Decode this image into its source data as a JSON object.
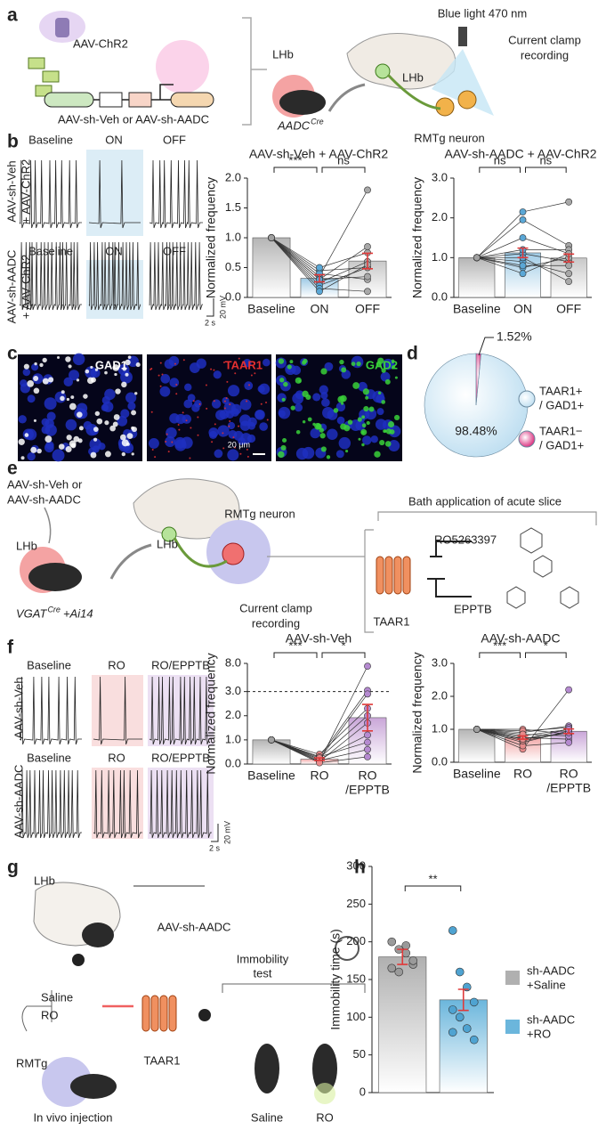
{
  "figure": {
    "panel_letters": [
      "a",
      "b",
      "c",
      "d",
      "e",
      "f",
      "g",
      "h"
    ],
    "a": {
      "chr2": "AAV-ChR2",
      "vectors": "AAV-sh-Veh or AAV-sh-AADC",
      "lhb_site": "LHb",
      "mouse": "AADC",
      "mouse_sup": "Cre",
      "lhb_brain": "LHb",
      "light": "Blue light 470 nm",
      "clamp": [
        "Current clamp",
        "recording"
      ],
      "neuron": "RMTg neuron"
    },
    "b": {
      "conditions": [
        "Baseline",
        "ON",
        "OFF"
      ],
      "rows": [
        [
          "AAV-sh-Veh",
          "+ AAV-ChR2"
        ],
        [
          "AAV-sh-AADC",
          "+ AAV-ChR2"
        ]
      ],
      "scale_v": "20 mV",
      "scale_t": "2 s"
    },
    "c": {
      "stains": [
        "GAD1",
        "TAAR1",
        "GAD2"
      ],
      "scale": "20 μm"
    },
    "e": {
      "vectors": [
        "AAV-sh-Veh or",
        "AAV-sh-AADC"
      ],
      "lhb_site": "LHb",
      "mouse": "VGAT",
      "mouse_sup": "Cre",
      "mouse_cross": "+Ai14",
      "lhb_brain": "LHb",
      "neuron": "RMTg neuron",
      "clamp": [
        "Current clamp",
        "recording"
      ],
      "bath": "Bath application of acute slice",
      "agonist": "RO5263397",
      "antagonist": "EPPTB",
      "receptor": "TAAR1"
    },
    "f": {
      "conditions": [
        "Baseline",
        "RO",
        "RO/EPPTB"
      ],
      "rows": [
        "AAV-sh-Veh",
        "AAV-sh-AADC"
      ],
      "scale_v": "20 mV",
      "scale_t": "2 s"
    },
    "g": {
      "lhb_site": "LHb",
      "vector": "AAV-sh-AADC",
      "drugs": [
        "Saline",
        "RO"
      ],
      "site": "RMTg",
      "receptor": "TAAR1",
      "injection": "In vivo injection",
      "test": [
        "Immobility",
        "test"
      ],
      "groups": [
        "Saline",
        "RO"
      ]
    }
  },
  "chart_data": [
    {
      "type": "bar",
      "title": "AAV-sh-Veh + AAV-ChR2",
      "ylabel": "Normalized frequency",
      "categories": [
        "Baseline",
        "ON",
        "OFF"
      ],
      "values": [
        1.0,
        0.32,
        0.61
      ],
      "errors": [
        0,
        0.06,
        0.13
      ],
      "colors": [
        "#b5b5b5",
        "#9fcbe6",
        "#c8c8c8"
      ],
      "point_colors": [
        "#a0a0a0",
        "#5aa7d6",
        "#a8a8a8"
      ],
      "error_color": "#e03a3a",
      "subjects": [
        [
          1,
          0.45,
          0.5
        ],
        [
          1,
          0.35,
          1.8
        ],
        [
          1,
          0.3,
          0.85
        ],
        [
          1,
          0.25,
          0.6
        ],
        [
          1,
          0.2,
          0.5
        ],
        [
          1,
          0.4,
          0.3
        ],
        [
          1,
          0.15,
          0.1
        ],
        [
          1,
          0.5,
          0.75
        ],
        [
          1,
          0.3,
          0.35
        ],
        [
          1,
          0.1,
          0.55
        ]
      ],
      "ylim": [
        0,
        2
      ],
      "yticks": [
        {
          "value": 0,
          "label": "0.0"
        },
        0.5,
        {
          "value": 1,
          "label": "1.0"
        },
        1.5,
        {
          "value": 2,
          "label": "2.0"
        }
      ],
      "significance": [
        {
          "pair": [
            0,
            1
          ],
          "label": "***"
        },
        {
          "pair": [
            1,
            2
          ],
          "label": "ns"
        }
      ]
    },
    {
      "type": "bar",
      "title": "AAV-sh-AADC + AAV-ChR2",
      "ylabel": "Normalized frequency",
      "categories": [
        "Baseline",
        "ON",
        "OFF"
      ],
      "values": [
        1.0,
        1.12,
        0.99
      ],
      "errors": [
        0,
        0.12,
        0.1
      ],
      "colors": [
        "#b5b5b5",
        "#9fcbe6",
        "#c8c8c8"
      ],
      "point_colors": [
        "#a0a0a0",
        "#5aa7d6",
        "#a8a8a8"
      ],
      "error_color": "#e03a3a",
      "subjects": [
        [
          1,
          2.15,
          2.4
        ],
        [
          1,
          1.95,
          1.3
        ],
        [
          1,
          1.5,
          1.1
        ],
        [
          1,
          1.1,
          0.9
        ],
        [
          1,
          0.9,
          0.6
        ],
        [
          1,
          0.75,
          1.0
        ],
        [
          1,
          1.0,
          0.4
        ],
        [
          1,
          0.8,
          0.8
        ],
        [
          1,
          1.2,
          1.2
        ],
        [
          1,
          0.6,
          1.1
        ]
      ],
      "ylim": [
        0,
        3
      ],
      "yticks": [
        {
          "value": 0,
          "label": "0.0"
        },
        {
          "value": 1,
          "label": "1.0"
        },
        {
          "value": 2,
          "label": "2.0"
        },
        {
          "value": 3,
          "label": "3.0"
        }
      ],
      "significance": [
        {
          "pair": [
            0,
            1
          ],
          "label": "ns"
        },
        {
          "pair": [
            1,
            2
          ],
          "label": "ns"
        }
      ]
    },
    {
      "type": "pie",
      "values": [
        98.48,
        1.52
      ],
      "value_labels": [
        "98.48%",
        "1.52%"
      ],
      "colors": [
        "#b9dcf0",
        "#d6156e"
      ],
      "labels": [
        [
          "TAAR1+",
          "/ GAD1+"
        ],
        [
          "TAAR1−",
          "/ GAD1+"
        ]
      ]
    },
    {
      "type": "bar",
      "title": "AAV-sh-Veh",
      "ylabel": "Normalized frequency",
      "categories": [
        "Baseline",
        "RO",
        [
          "RO",
          "/EPPTB"
        ]
      ],
      "values": [
        1.0,
        0.2,
        1.92
      ],
      "errors": [
        0,
        0.05,
        0.55
      ],
      "colors": [
        "#b5b5b5",
        "#f2a9a9",
        "#c9a6d8"
      ],
      "point_colors": [
        "#a0a0a0",
        "#e88a8a",
        "#b58ad0"
      ],
      "error_color": "#e03a3a",
      "subjects": [
        [
          1,
          0.1,
          7.5
        ],
        [
          1,
          0.3,
          3.2
        ],
        [
          1,
          0.2,
          2.9
        ],
        [
          1,
          0.4,
          2.3
        ],
        [
          1,
          0.1,
          1.7
        ],
        [
          1,
          0.2,
          1.2
        ],
        [
          1,
          0.3,
          0.9
        ],
        [
          1,
          0.15,
          0.6
        ],
        [
          1,
          0.25,
          2.0
        ],
        [
          1,
          0.05,
          0.3
        ]
      ],
      "ylim": [
        0,
        8
      ],
      "axis_break": 3,
      "yticks": [
        {
          "value": 0,
          "label": "0.0"
        },
        {
          "value": 1,
          "label": "1.0"
        },
        {
          "value": 2,
          "label": "2.0"
        },
        {
          "value": 3,
          "label": "3.0"
        },
        {
          "value": 8,
          "label": "8.0"
        }
      ],
      "significance": [
        {
          "pair": [
            0,
            1
          ],
          "label": "***"
        },
        {
          "pair": [
            1,
            2
          ],
          "label": "*"
        }
      ]
    },
    {
      "type": "bar",
      "title": "AAV-sh-AADC",
      "ylabel": "Normalized frequency",
      "categories": [
        "Baseline",
        "RO",
        [
          "RO",
          "/EPPTB"
        ]
      ],
      "values": [
        1.0,
        0.75,
        0.94
      ],
      "errors": [
        0,
        0.05,
        0.07
      ],
      "colors": [
        "#b5b5b5",
        "#f2a9a9",
        "#c9a6d8"
      ],
      "point_colors": [
        "#a0a0a0",
        "#e88a8a",
        "#b58ad0"
      ],
      "error_color": "#e03a3a",
      "subjects": [
        [
          1,
          0.4,
          2.2
        ],
        [
          1,
          0.9,
          1.1
        ],
        [
          1,
          0.8,
          1.0
        ],
        [
          1,
          0.7,
          0.9
        ],
        [
          1,
          1.0,
          0.85
        ],
        [
          1,
          0.6,
          0.95
        ],
        [
          1,
          0.75,
          0.7
        ],
        [
          1,
          0.5,
          0.6
        ],
        [
          1,
          0.95,
          1.05
        ],
        [
          1,
          0.85,
          0.8
        ],
        [
          1,
          0.65,
          0.9
        ],
        [
          1,
          0.7,
          1.0
        ]
      ],
      "ylim": [
        0,
        3
      ],
      "yticks": [
        {
          "value": 0,
          "label": "0.0"
        },
        {
          "value": 1,
          "label": "1.0"
        },
        {
          "value": 2,
          "label": "2.0"
        },
        {
          "value": 3,
          "label": "3.0"
        }
      ],
      "significance": [
        {
          "pair": [
            0,
            1
          ],
          "label": "***"
        },
        {
          "pair": [
            1,
            2
          ],
          "label": "*"
        }
      ]
    },
    {
      "type": "bar",
      "ylabel": "Immobility time (s)",
      "categories": [
        null,
        null
      ],
      "values": [
        180,
        123
      ],
      "errors": [
        10,
        14
      ],
      "colors": [
        "#b0b0b0",
        "#6bb6dc"
      ],
      "point_colors": [
        "#9a9a9a",
        "#4fa3d1"
      ],
      "error_color": "#e03a3a",
      "legend": [
        [
          "sh-AADC",
          "+Saline"
        ],
        [
          "sh-AADC",
          "+RO"
        ]
      ],
      "points": [
        [
          200,
          190,
          185,
          170,
          165,
          160,
          195,
          175
        ],
        [
          215,
          160,
          140,
          120,
          110,
          100,
          85,
          70,
          80
        ]
      ],
      "ylim": [
        0,
        300
      ],
      "yticks": [
        0,
        50,
        100,
        150,
        200,
        250,
        300
      ],
      "significance": [
        {
          "pair": [
            0,
            1
          ],
          "label": "**"
        }
      ]
    }
  ]
}
